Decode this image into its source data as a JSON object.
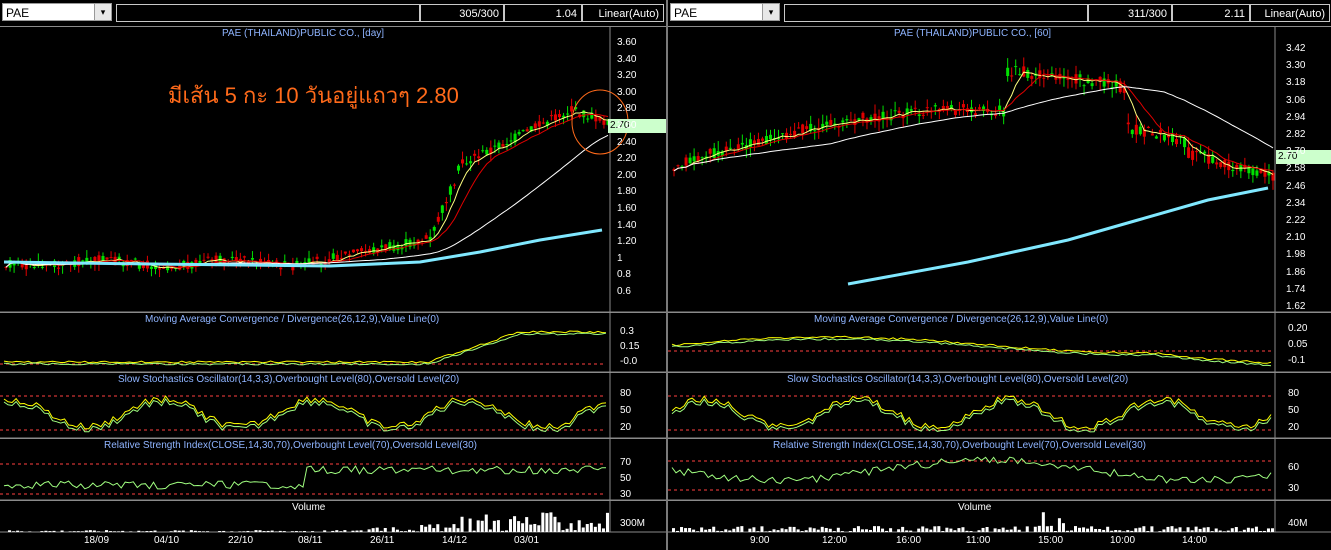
{
  "left": {
    "symbol": "PAE",
    "dropdown_icon": "▾",
    "bars": "305/300",
    "value": "1.04",
    "scale": "Linear(Auto)",
    "chart_title": "PAE (THAILAND)PUBLIC CO., [day]",
    "annotation": "มีเส้น 5 กะ 10 วันอยู่แถวๆ 2.80",
    "price_tag": "2.70",
    "price_axis": [
      "3.60",
      "3.40",
      "3.20",
      "3.00",
      "2.80",
      "2.60",
      "2.40",
      "2.20",
      "2.00",
      "1.80",
      "1.60",
      "1.40",
      "1.20",
      "1",
      "0.8",
      "0.6"
    ],
    "macd_title": "Moving Average Convergence / Divergence(26,12,9),Value Line(0)",
    "macd_axis": [
      "0.3",
      "0.15",
      "-0.0"
    ],
    "stoch_title": "Slow Stochastics Oscillator(14,3,3),Overbought Level(80),Oversold Level(20)",
    "stoch_axis": [
      "80",
      "50",
      "20"
    ],
    "rsi_title": "Relative Strength Index(CLOSE,14,30,70),Overbought Level(70),Oversold Level(30)",
    "rsi_axis": [
      "70",
      "50",
      "30"
    ],
    "volume_title": "Volume",
    "volume_axis": "300M",
    "dates": [
      "18/09",
      "04/10",
      "22/10",
      "08/11",
      "26/11",
      "14/12",
      "03/01"
    ]
  },
  "right": {
    "symbol": "PAE",
    "dropdown_icon": "▾",
    "bars": "311/300",
    "value": "2.11",
    "scale": "Linear(Auto)",
    "chart_title": "PAE (THAILAND)PUBLIC CO., [60]",
    "price_tag": "2.70",
    "price_axis": [
      "3.42",
      "3.30",
      "3.18",
      "3.06",
      "2.94",
      "2.82",
      "2.70",
      "2.58",
      "2.46",
      "2.34",
      "2.22",
      "2.10",
      "1.98",
      "1.86",
      "1.74",
      "1.62"
    ],
    "macd_title": "Moving Average Convergence / Divergence(26,12,9),Value Line(0)",
    "macd_axis": [
      "0.20",
      "0.05",
      "-0.1"
    ],
    "stoch_title": "Slow Stochastics Oscillator(14,3,3),Overbought Level(80),Oversold Level(20)",
    "stoch_axis": [
      "80",
      "50",
      "20"
    ],
    "rsi_title": "Relative Strength Index(CLOSE,14,30,70),Overbought Level(70),Oversold Level(30)",
    "rsi_axis": [
      "60",
      "30"
    ],
    "volume_title": "Volume",
    "volume_axis": "40M",
    "times": [
      "9:00",
      "12:00",
      "16:00",
      "11:00",
      "15:00",
      "10:00",
      "14:00"
    ]
  },
  "colors": {
    "up_candle": "#00e000",
    "down_candle": "#e00000",
    "ma_fast": "#ffff80",
    "ma_mid": "#e00000",
    "ma_slow": "#ffffff",
    "ma_long": "#80e8ff",
    "indicator": "#ffff00",
    "signal": "#a0ff80",
    "level_line": "#ff4040",
    "annotation": "#ff6a1a"
  }
}
